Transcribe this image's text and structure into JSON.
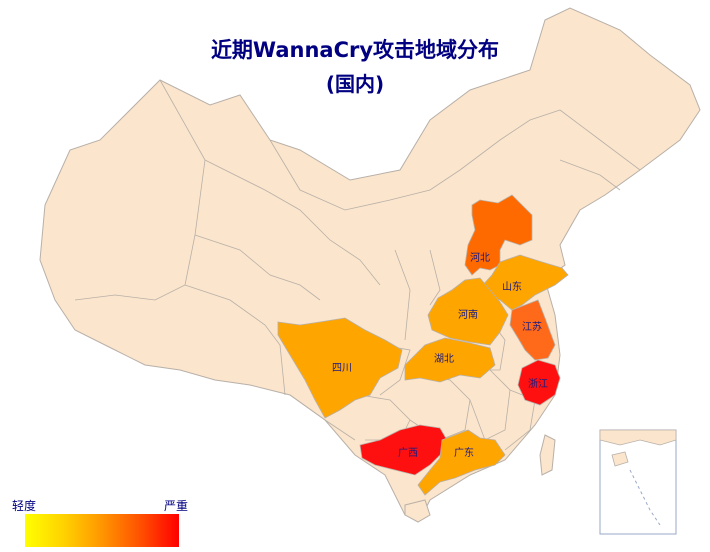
{
  "title": {
    "line1": "近期WannaCry攻击地域分布",
    "line2": "(国内)"
  },
  "legend": {
    "low_label": "轻度",
    "high_label": "严重",
    "gradient_colors": [
      "#ffff00",
      "#ffd200",
      "#ff9600",
      "#ff5000",
      "#ff0000"
    ]
  },
  "colors": {
    "base_fill": "#fbe5cc",
    "border": "#b8b0a8",
    "inset_water": "#ffffff",
    "inset_border": "#9aa8c8"
  },
  "provinces": [
    {
      "name": "河北",
      "severity": "high",
      "color": "#ff6a00"
    },
    {
      "name": "山东",
      "severity": "medium",
      "color": "#ffa500"
    },
    {
      "name": "河南",
      "severity": "medium",
      "color": "#ffa500"
    },
    {
      "name": "江苏",
      "severity": "high",
      "color": "#ff6a1a"
    },
    {
      "name": "湖北",
      "severity": "medium",
      "color": "#ffa500"
    },
    {
      "name": "浙江",
      "severity": "severe",
      "color": "#ff1010"
    },
    {
      "name": "四川",
      "severity": "medium",
      "color": "#ffa500"
    },
    {
      "name": "广西",
      "severity": "severe",
      "color": "#ff1010"
    },
    {
      "name": "广东",
      "severity": "medium",
      "color": "#ffa500"
    }
  ]
}
